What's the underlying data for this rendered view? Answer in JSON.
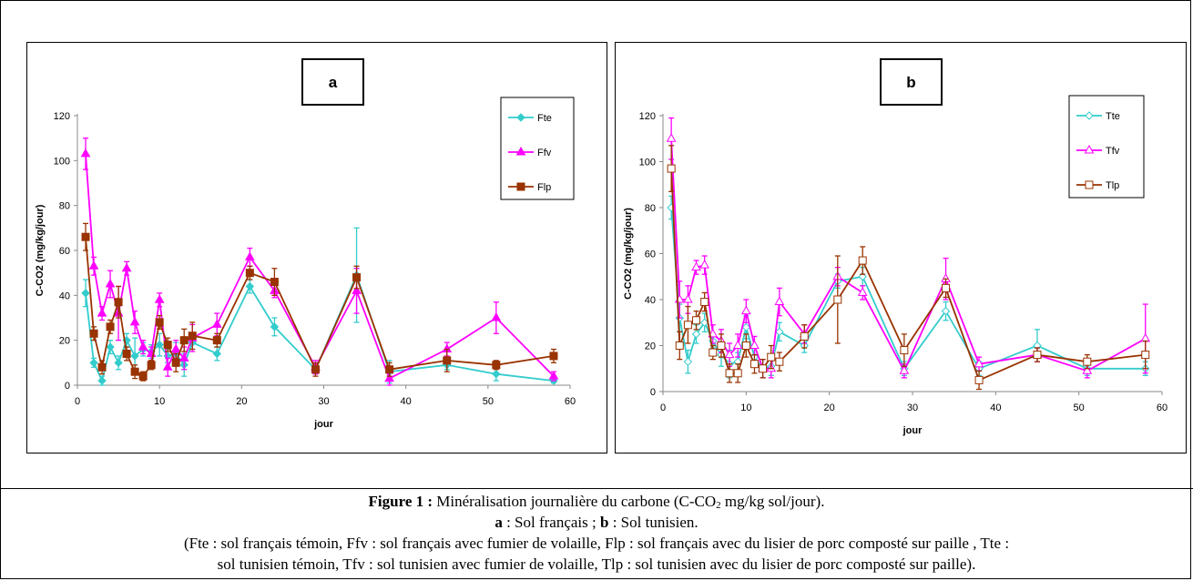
{
  "figure": {
    "caption_label": "Figure 1 :",
    "caption_text_pre": " Minéralisation journalière du carbone (C-CO",
    "caption_sub": "2",
    "caption_text_post": " mg/kg sol/jour).",
    "subcaption": {
      "a_letter": "a",
      "a_text": " : Sol français ; ",
      "b_letter": "b",
      "b_text": " : Sol tunisien."
    },
    "legend_line1": "(Fte : sol français témoin, Ffv : sol français avec fumier de volaille, Flp : sol français avec du lisier de porc composté sur paille , Tte :",
    "legend_line2": "sol tunisien témoin, Tfv : sol tunisien avec fumier de volaille, Tlp : sol tunisien avec du lisier de porc composté sur paille)."
  },
  "chart_data": [
    {
      "type": "line",
      "panel_label": "a",
      "xlabel": "jour",
      "ylabel": "C-CO2 (mg/kg/jour)",
      "xlim": [
        0,
        60
      ],
      "ylim": [
        0,
        120
      ],
      "xticks": [
        0,
        10,
        20,
        30,
        40,
        50,
        60
      ],
      "yticks": [
        0,
        20,
        40,
        60,
        80,
        100,
        120
      ],
      "grid": false,
      "legend_position": "top-right",
      "x": [
        1,
        2,
        3,
        4,
        5,
        6,
        7,
        8,
        9,
        10,
        11,
        12,
        13,
        14,
        17,
        21,
        24,
        29,
        34,
        38,
        45,
        51,
        58
      ],
      "series": [
        {
          "name": "Fte",
          "color": "#33CCCC",
          "marker": "diamond",
          "values": [
            41,
            10,
            2,
            17,
            10,
            20,
            13,
            16,
            15,
            18,
            13,
            14,
            9,
            19,
            14,
            44,
            26,
            7,
            49,
            6,
            9,
            5,
            2
          ],
          "errors": [
            6,
            2,
            2,
            3,
            3,
            3,
            8,
            3,
            3,
            5,
            3,
            5,
            5,
            3,
            3,
            3,
            4,
            2,
            21,
            5,
            2,
            3,
            1
          ]
        },
        {
          "name": "Ffv",
          "color": "#FF00FF",
          "marker": "triangle",
          "values": [
            103,
            53,
            32,
            45,
            32,
            52,
            28,
            17,
            14,
            38,
            8,
            16,
            12,
            21,
            27,
            57,
            42,
            8,
            42,
            3,
            16,
            30,
            4
          ],
          "errors": [
            7,
            4,
            3,
            6,
            12,
            3,
            5,
            3,
            3,
            3,
            4,
            4,
            5,
            6,
            5,
            4,
            3,
            3,
            10,
            3,
            3,
            7,
            2
          ]
        },
        {
          "name": "Flp",
          "color": "#993300",
          "marker": "square",
          "values": [
            66,
            23,
            8,
            26,
            37,
            14,
            6,
            4,
            9,
            28,
            18,
            10,
            20,
            22,
            20,
            50,
            46,
            7,
            48,
            7,
            11,
            9,
            13
          ],
          "errors": [
            6,
            3,
            3,
            3,
            7,
            3,
            3,
            2,
            2,
            3,
            3,
            4,
            5,
            6,
            3,
            3,
            6,
            3,
            5,
            3,
            5,
            2,
            3
          ]
        }
      ]
    },
    {
      "type": "line",
      "panel_label": "b",
      "xlabel": "jour",
      "ylabel": "C-CO2 (mg/kg/jour)",
      "xlim": [
        0,
        60
      ],
      "ylim": [
        0,
        120
      ],
      "xticks": [
        0,
        10,
        20,
        30,
        40,
        50,
        60
      ],
      "yticks": [
        0,
        20,
        40,
        60,
        80,
        100,
        120
      ],
      "grid": false,
      "legend_position": "top-right",
      "x": [
        1,
        2,
        3,
        4,
        5,
        6,
        7,
        8,
        9,
        10,
        11,
        12,
        13,
        14,
        17,
        21,
        24,
        29,
        34,
        38,
        45,
        51,
        58
      ],
      "series": [
        {
          "name": "Tte",
          "color": "#33CCCC",
          "marker": "diamond-open",
          "values": [
            80,
            32,
            13,
            25,
            30,
            22,
            16,
            12,
            13,
            28,
            15,
            10,
            11,
            26,
            20,
            48,
            50,
            10,
            35,
            10,
            20,
            10,
            10
          ],
          "errors": [
            5,
            6,
            5,
            4,
            4,
            3,
            5,
            6,
            4,
            5,
            4,
            4,
            4,
            4,
            3,
            3,
            4,
            3,
            4,
            3,
            7,
            3,
            3
          ]
        },
        {
          "name": "Tfv",
          "color": "#FF00FF",
          "marker": "triangle-open",
          "values": [
            110,
            40,
            40,
            54,
            55,
            25,
            22,
            16,
            20,
            35,
            20,
            10,
            10,
            39,
            25,
            50,
            43,
            9,
            49,
            12,
            16,
            9,
            23
          ],
          "errors": [
            9,
            8,
            6,
            3,
            4,
            4,
            5,
            5,
            5,
            5,
            4,
            4,
            4,
            6,
            4,
            4,
            3,
            3,
            9,
            3,
            3,
            3,
            15
          ]
        },
        {
          "name": "Tlp",
          "color": "#993300",
          "marker": "square-open",
          "values": [
            97,
            20,
            29,
            31,
            39,
            17,
            20,
            8,
            8,
            20,
            12,
            10,
            15,
            13,
            24,
            40,
            57,
            18,
            45,
            5,
            16,
            13,
            16
          ],
          "errors": [
            10,
            6,
            8,
            4,
            4,
            3,
            5,
            4,
            4,
            5,
            4,
            4,
            5,
            4,
            5,
            19,
            6,
            7,
            4,
            4,
            3,
            3,
            6
          ]
        }
      ]
    }
  ]
}
